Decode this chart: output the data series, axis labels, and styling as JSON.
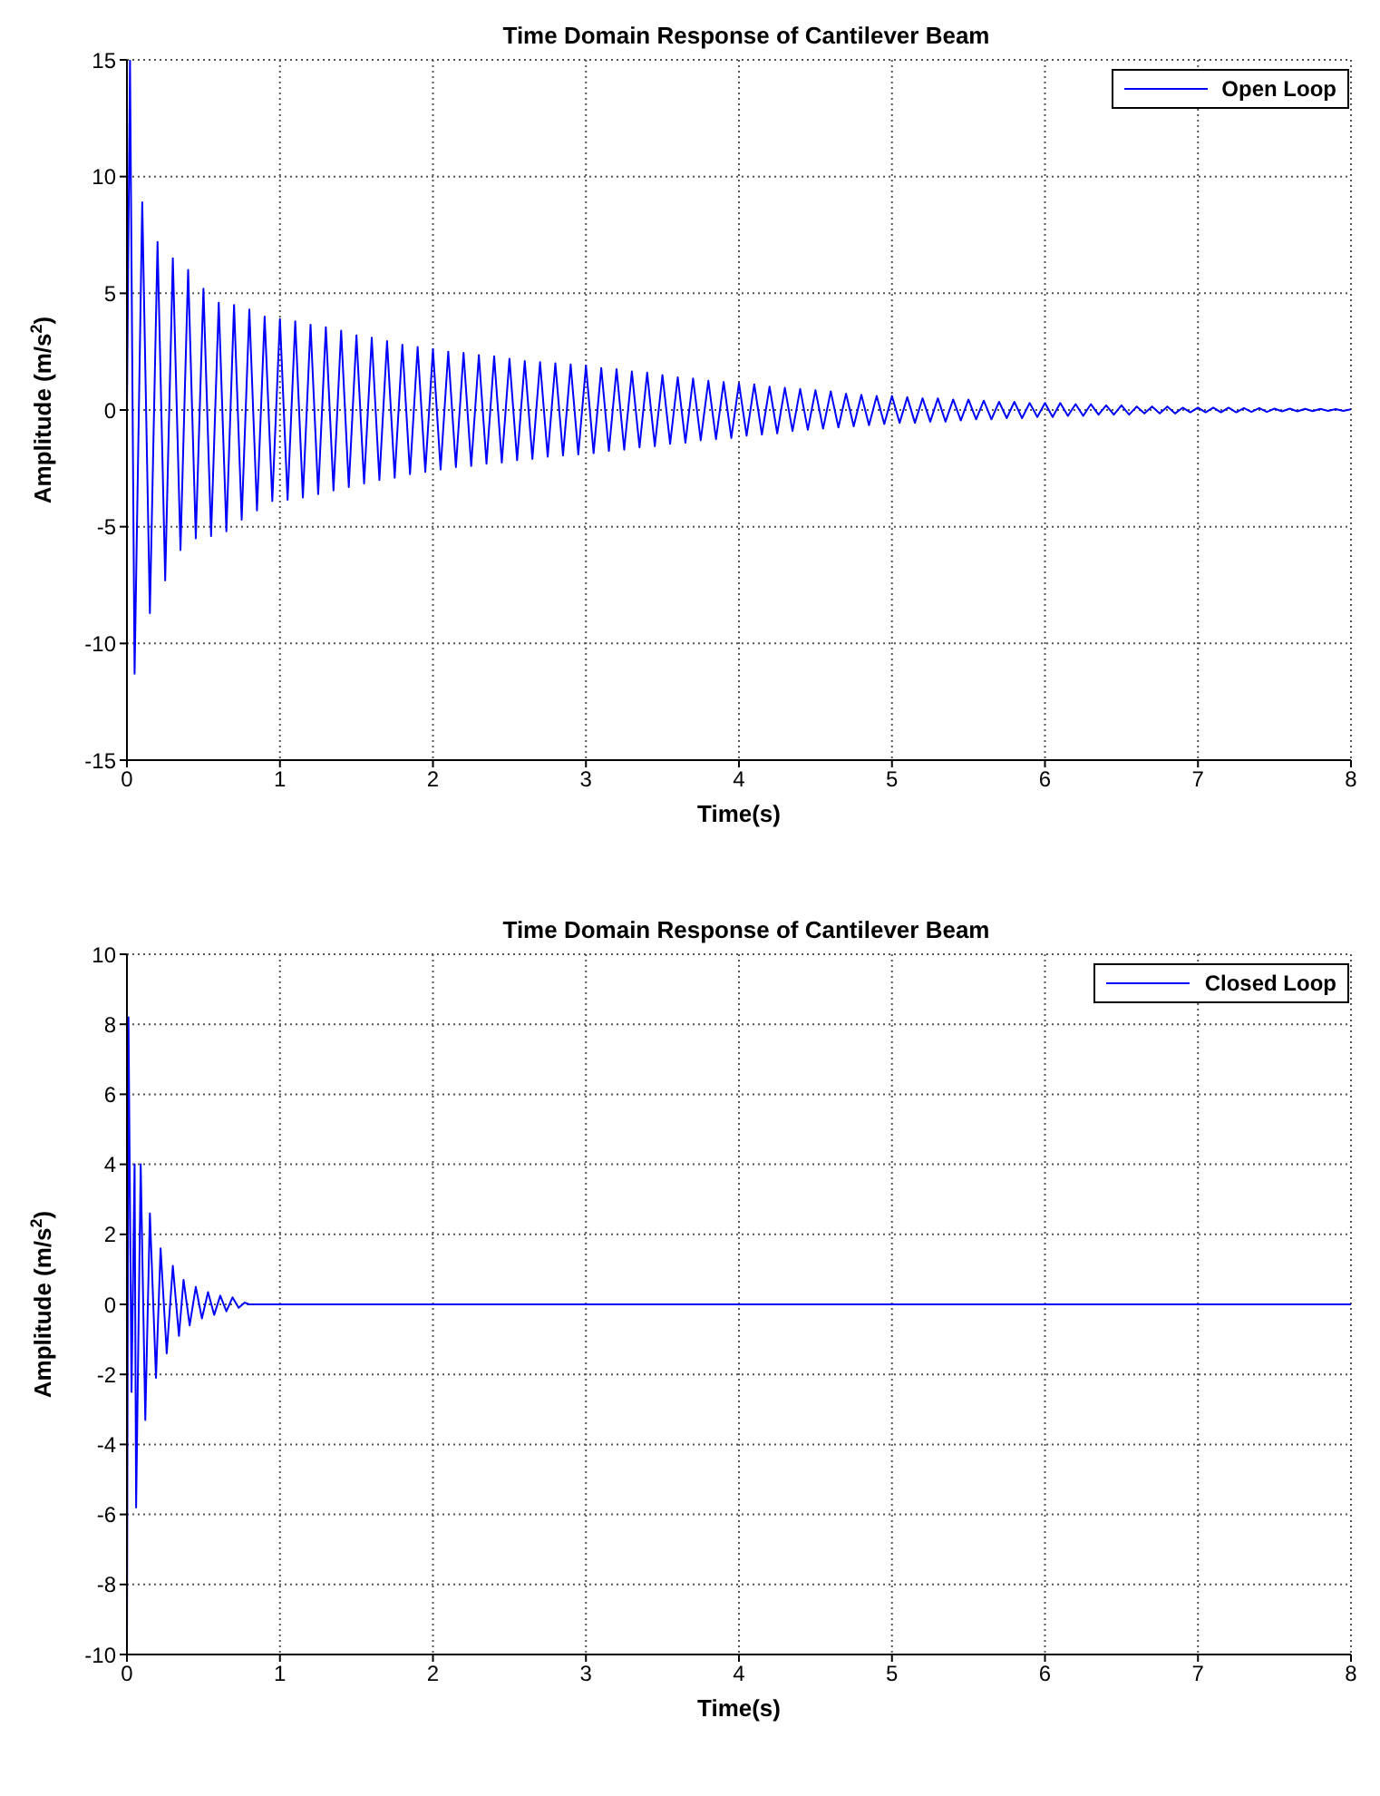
{
  "chart_data": [
    {
      "type": "line",
      "title": "Time Domain Response of Cantilever Beam",
      "xlabel": "Time(s)",
      "ylabel": "Amplitude (m/s$^{2}$)",
      "x": [
        0,
        0.02,
        0.05,
        0.1,
        0.15,
        0.2,
        0.25,
        0.3,
        0.35,
        0.4,
        0.45,
        0.5,
        0.55,
        0.6,
        0.65,
        0.7,
        0.75,
        0.8,
        0.85,
        0.9,
        0.95,
        1,
        1.05,
        1.1,
        1.15,
        1.2,
        1.25,
        1.3,
        1.35,
        1.4,
        1.45,
        1.5,
        1.55,
        1.6,
        1.65,
        1.7,
        1.75,
        1.8,
        1.85,
        1.9,
        1.95,
        2,
        2.05,
        2.1,
        2.15,
        2.2,
        2.25,
        2.3,
        2.35,
        2.4,
        2.45,
        2.5,
        2.55,
        2.6,
        2.65,
        2.7,
        2.75,
        2.8,
        2.85,
        2.9,
        2.95,
        3,
        3.05,
        3.1,
        3.15,
        3.2,
        3.25,
        3.3,
        3.35,
        3.4,
        3.45,
        3.5,
        3.55,
        3.6,
        3.65,
        3.7,
        3.75,
        3.8,
        3.85,
        3.9,
        3.95,
        4,
        4.05,
        4.1,
        4.15,
        4.2,
        4.25,
        4.3,
        4.35,
        4.4,
        4.45,
        4.5,
        4.55,
        4.6,
        4.65,
        4.7,
        4.75,
        4.8,
        4.85,
        4.9,
        4.95,
        5,
        5.05,
        5.1,
        5.15,
        5.2,
        5.25,
        5.3,
        5.35,
        5.4,
        5.45,
        5.5,
        5.55,
        5.6,
        5.65,
        5.7,
        5.75,
        5.8,
        5.85,
        5.9,
        5.95,
        6,
        6.05,
        6.1,
        6.15,
        6.2,
        6.25,
        6.3,
        6.35,
        6.4,
        6.45,
        6.5,
        6.55,
        6.6,
        6.65,
        6.7,
        6.75,
        6.8,
        6.85,
        6.9,
        6.95,
        7,
        7.05,
        7.1,
        7.15,
        7.2,
        7.25,
        7.3,
        7.35,
        7.4,
        7.45,
        7.5,
        7.55,
        7.6,
        7.65,
        7.7,
        7.75,
        7.8,
        7.85,
        7.9,
        7.95,
        8
      ],
      "series": [
        {
          "name": "Open Loop",
          "color": "#0000ff",
          "values": [
            0,
            15,
            -11.3,
            8.9,
            -8.7,
            7.2,
            -7.3,
            6.5,
            -6,
            6,
            -5.5,
            5.2,
            -5.4,
            4.6,
            -5.2,
            4.5,
            -4.7,
            4.3,
            -4.3,
            4,
            -3.9,
            3.9,
            -3.85,
            3.8,
            -3.75,
            3.65,
            -3.6,
            3.55,
            -3.45,
            3.4,
            -3.3,
            3.2,
            -3.15,
            3.1,
            -3,
            2.95,
            -2.9,
            2.8,
            -2.75,
            2.7,
            -2.65,
            2.6,
            -2.55,
            2.5,
            -2.45,
            2.45,
            -2.4,
            2.35,
            -2.3,
            2.3,
            -2.25,
            2.2,
            -2.15,
            2.1,
            -2.1,
            2.05,
            -2,
            2,
            -1.95,
            1.95,
            -1.9,
            1.9,
            -1.85,
            1.8,
            -1.75,
            1.75,
            -1.7,
            1.65,
            -1.6,
            1.6,
            -1.55,
            1.5,
            -1.45,
            1.4,
            -1.4,
            1.35,
            -1.3,
            1.25,
            -1.25,
            1.2,
            -1.2,
            1.15,
            -1.1,
            1.1,
            -1.05,
            1,
            -1,
            0.95,
            -0.9,
            0.9,
            -0.85,
            0.85,
            -0.8,
            0.8,
            -0.75,
            0.7,
            -0.7,
            0.65,
            -0.65,
            0.6,
            -0.6,
            0.6,
            -0.55,
            0.55,
            -0.55,
            0.5,
            -0.5,
            0.5,
            -0.5,
            0.45,
            -0.45,
            0.45,
            -0.4,
            0.4,
            -0.4,
            0.35,
            -0.35,
            0.35,
            -0.35,
            0.3,
            -0.3,
            0.3,
            -0.3,
            0.3,
            -0.25,
            0.25,
            -0.25,
            0.25,
            -0.2,
            0.2,
            -0.2,
            0.2,
            -0.2,
            0.15,
            -0.15,
            0.15,
            -0.15,
            0.15,
            -0.15,
            0.1,
            -0.1,
            0.1,
            -0.1,
            0.1,
            -0.1,
            0.1,
            -0.1,
            0.08,
            -0.08,
            0.08,
            -0.08,
            0.06,
            -0.06,
            0.06,
            -0.06,
            0.05,
            -0.05,
            0.05,
            -0.04,
            0.04,
            -0.04,
            0.03
          ]
        }
      ],
      "xlim": [
        0,
        8
      ],
      "xticks": [
        0,
        1,
        2,
        3,
        4,
        5,
        6,
        7,
        8
      ],
      "ylim": [
        -15,
        15
      ],
      "yticks": [
        -15,
        -10,
        -5,
        0,
        5,
        10,
        15
      ],
      "grid": true,
      "legend": "top right"
    },
    {
      "type": "line",
      "title": "Time Domain Response of Cantilever Beam",
      "xlabel": "Time(s)",
      "ylabel": "Amplitude (m/s$^{2}$)",
      "x": [
        0,
        0.01,
        0.03,
        0.05,
        0.06,
        0.09,
        0.12,
        0.15,
        0.19,
        0.22,
        0.26,
        0.3,
        0.34,
        0.37,
        0.41,
        0.45,
        0.49,
        0.53,
        0.57,
        0.61,
        0.65,
        0.69,
        0.73,
        0.77,
        0.8,
        8
      ],
      "series": [
        {
          "name": "Closed Loop",
          "color": "#0000ff",
          "values": [
            -10,
            8.2,
            -2.5,
            4,
            -5.8,
            4,
            -3.3,
            2.6,
            -2.1,
            1.6,
            -1.4,
            1.1,
            -0.9,
            0.7,
            -0.6,
            0.5,
            -0.4,
            0.35,
            -0.3,
            0.25,
            -0.2,
            0.2,
            -0.1,
            0.05,
            0,
            0
          ]
        }
      ],
      "xlim": [
        0,
        8
      ],
      "xticks": [
        0,
        1,
        2,
        3,
        4,
        5,
        6,
        7,
        8
      ],
      "ylim": [
        -10,
        10
      ],
      "yticks": [
        -10,
        -8,
        -6,
        -4,
        -2,
        0,
        2,
        4,
        6,
        8,
        10
      ],
      "grid": true,
      "legend": "top right"
    }
  ]
}
